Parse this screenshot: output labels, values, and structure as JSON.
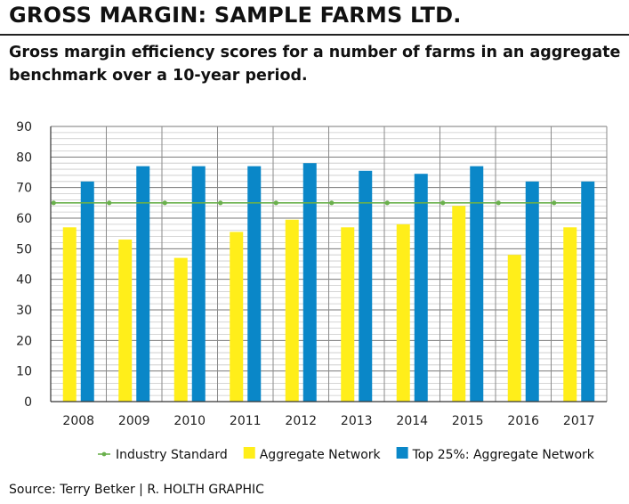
{
  "header": {
    "title": "GROSS MARGIN: SAMPLE FARMS LTD.",
    "subtitle": "Gross margin efficiency scores for a number of farms in an aggregate benchmark over a 10-year period."
  },
  "chart_data": {
    "type": "bar",
    "categories": [
      "2008",
      "2009",
      "2010",
      "2011",
      "2012",
      "2013",
      "2014",
      "2015",
      "2016",
      "2017"
    ],
    "series": [
      {
        "name": "Industry Standard",
        "kind": "line",
        "color": "#6ab04c",
        "values": [
          65,
          65,
          65,
          65,
          65,
          65,
          65,
          65,
          65,
          65
        ]
      },
      {
        "name": "Aggregate Network",
        "kind": "bar",
        "color": "#ffee1a",
        "values": [
          57,
          53,
          47,
          55.5,
          59.5,
          57,
          58,
          64,
          48,
          57
        ]
      },
      {
        "name": "Top 25%: Aggregate Network",
        "kind": "bar",
        "color": "#0a87c8",
        "values": [
          72,
          77,
          77,
          77,
          78,
          75.5,
          74.5,
          77,
          72,
          72
        ]
      }
    ],
    "ylim": [
      0,
      90
    ],
    "yticks": [
      "0",
      "10",
      "20",
      "30",
      "40",
      "50",
      "60",
      "70",
      "80",
      "90"
    ],
    "grid": true,
    "legend_position": "bottom",
    "xlabel": "",
    "ylabel": ""
  },
  "footer": {
    "source": "Source: Terry Betker  |  R. HOLTH GRAPHIC"
  }
}
